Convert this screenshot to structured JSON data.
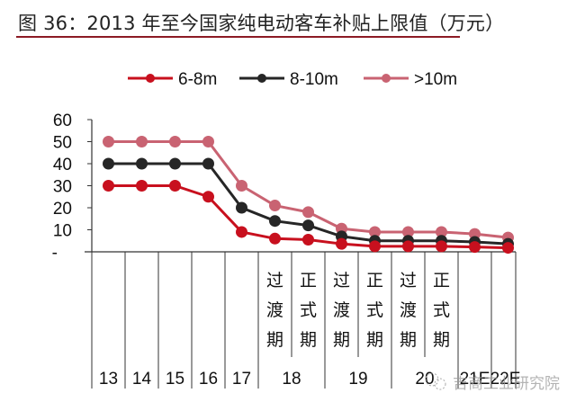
{
  "title": "图 36：2013 年至今国家纯电动客车补贴上限值（万元）",
  "watermark": "吉商工业研究院",
  "colors": {
    "title_rule": "#8c1a24",
    "series_6_8m": "#c8101e",
    "series_8_10m": "#262626",
    "series_gt10m": "#c96372",
    "axis": "#333333"
  },
  "legend": [
    {
      "label": "6-8m",
      "color": "#c8101e"
    },
    {
      "label": "8-10m",
      "color": "#262626"
    },
    {
      "label": ">10m",
      "color": "#c96372"
    }
  ],
  "y_axis": {
    "ticks": [
      "60",
      "50",
      "40",
      "30",
      "20",
      "10",
      "-"
    ]
  },
  "x_axis": {
    "phase_labels": [
      {
        "chars": [
          "过",
          "渡",
          "期"
        ]
      },
      {
        "chars": [
          "正",
          "式",
          "期"
        ]
      }
    ],
    "year_labels": [
      "13",
      "14",
      "15",
      "16",
      "17",
      "18",
      "19",
      "20",
      "21E",
      "22E"
    ]
  },
  "chart_data": {
    "type": "line",
    "title": "2013 年至今国家纯电动客车补贴上限值（万元）",
    "xlabel": "",
    "ylabel": "万元",
    "ylim": [
      0,
      60
    ],
    "yticks": [
      0,
      10,
      20,
      30,
      40,
      50,
      60
    ],
    "grid": false,
    "legend_position": "top",
    "categories": [
      "13",
      "14",
      "15",
      "16",
      "17",
      "18 过渡期",
      "18 正式期",
      "19 过渡期",
      "19 正式期",
      "20 过渡期",
      "20 正式期",
      "21E",
      "22E"
    ],
    "series": [
      {
        "name": "6-8m",
        "color": "#c8101e",
        "values": [
          30,
          30,
          30,
          25,
          9,
          6,
          5.5,
          3.6,
          2.5,
          2.5,
          2.5,
          2.2,
          1.8
        ]
      },
      {
        "name": "8-10m",
        "color": "#262626",
        "values": [
          40,
          40,
          40,
          40,
          20,
          14,
          12,
          7,
          5,
          5,
          5,
          4.5,
          3.6
        ]
      },
      {
        "name": ">10m",
        "color": "#c96372",
        "values": [
          50,
          50,
          50,
          50,
          30,
          21,
          18,
          10.5,
          9,
          9,
          9,
          8.1,
          6.5
        ]
      }
    ]
  }
}
